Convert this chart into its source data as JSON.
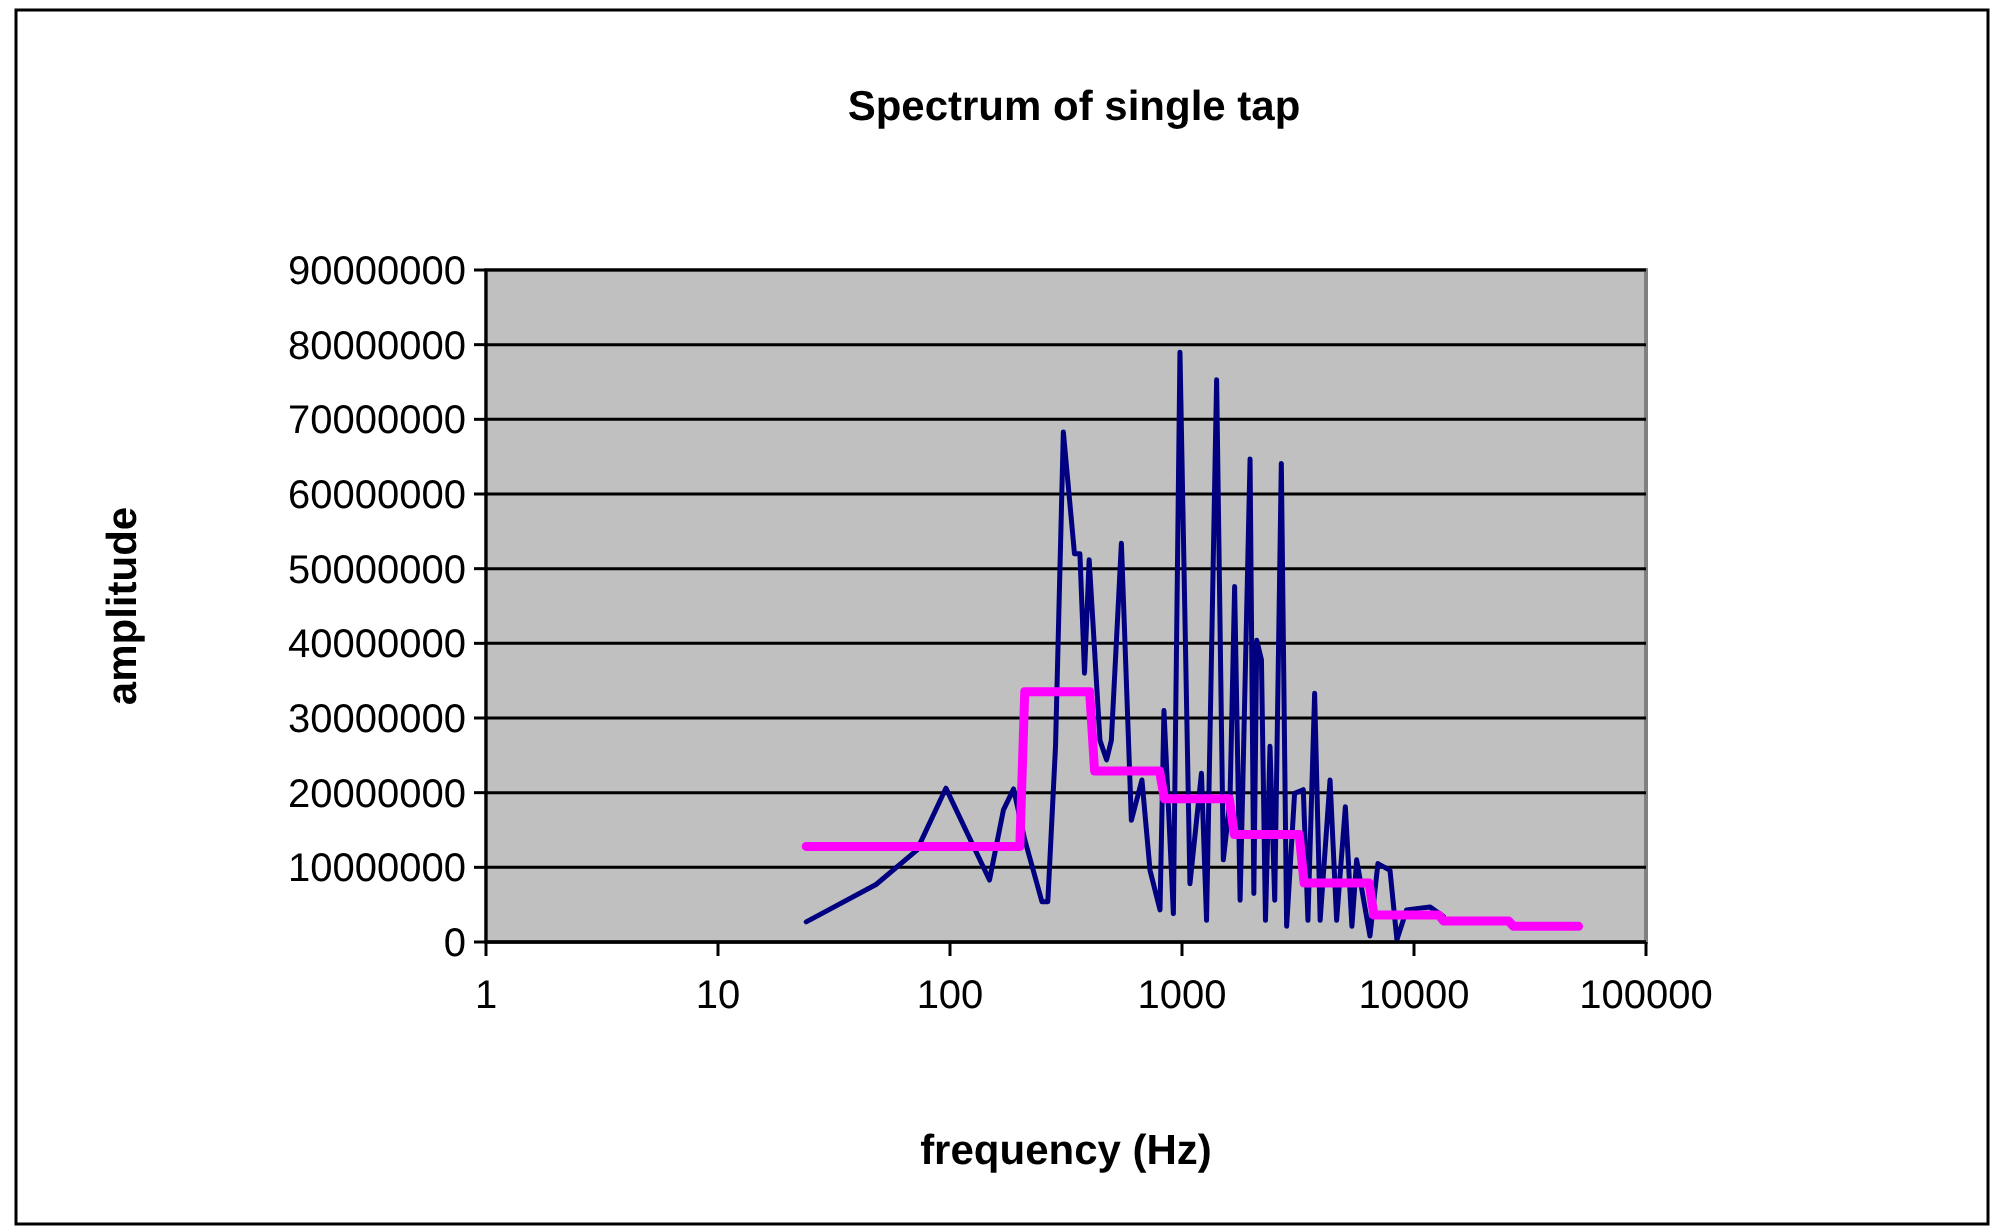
{
  "chart_data": {
    "type": "line",
    "title": "Spectrum of single tap",
    "xlabel": "frequency (Hz)",
    "ylabel": "amplitude",
    "log": "x",
    "grid": "y",
    "marker": "none",
    "line_style": "solid",
    "xlim": [
      1,
      100000
    ],
    "xticks": [
      1,
      10,
      100,
      1000,
      10000,
      100000
    ],
    "ylim": [
      0,
      90000000
    ],
    "yticks": [
      0,
      10000000,
      20000000,
      30000000,
      40000000,
      50000000,
      60000000,
      70000000,
      80000000,
      90000000
    ],
    "series": [
      {
        "color": "#000080",
        "x": [
          24,
          48,
          72,
          96,
          148,
          170,
          188,
          210,
          249,
          264,
          285,
          308,
          344,
          363,
          380,
          398,
          443,
          473,
          496,
          548,
          605,
          672,
          728,
          804,
          836,
          918,
          980,
          1082,
          1213,
          1276,
          1410,
          1507,
          1610,
          1686,
          1780,
          1825,
          1965,
          2040,
          2100,
          2200,
          2290,
          2395,
          2510,
          2680,
          2825,
          3057,
          3333,
          3490,
          3730,
          3940,
          4346,
          4640,
          5060,
          5400,
          5660,
          6460,
          6990,
          7880,
          8440,
          9290,
          11700,
          13400
        ],
        "values": [
          2700000,
          7700000,
          12300000,
          20600000,
          8300000,
          17700000,
          20500000,
          13700000,
          5400000,
          5400000,
          26200000,
          68300000,
          52000000,
          52000000,
          36000000,
          51200000,
          27000000,
          24400000,
          27000000,
          53400000,
          16300000,
          21700000,
          9600000,
          4300000,
          31000000,
          3800000,
          79000000,
          7800000,
          22600000,
          2900000,
          75300000,
          11000000,
          19000000,
          47600000,
          5600000,
          19900000,
          64700000,
          6500000,
          40400000,
          37800000,
          2900000,
          26200000,
          5600000,
          64100000,
          2100000,
          19900000,
          20400000,
          2900000,
          33300000,
          2900000,
          21700000,
          2900000,
          18100000,
          2100000,
          11000000,
          800000,
          10500000,
          9600000,
          300000,
          4300000,
          4700000,
          3400000
        ]
      },
      {
        "color": "#ff00ff",
        "x": [
          24,
          200,
          210,
          400,
          420,
          800,
          840,
          1600,
          1680,
          3200,
          3360,
          6400,
          6720,
          12800,
          13440,
          25600,
          26880,
          51200
        ],
        "values": [
          12800000,
          12800000,
          33500000,
          33500000,
          22900000,
          22900000,
          19200000,
          19200000,
          14400000,
          14400000,
          7900000,
          7900000,
          3600000,
          3600000,
          2800000,
          2800000,
          2100000,
          2100000
        ]
      }
    ]
  }
}
